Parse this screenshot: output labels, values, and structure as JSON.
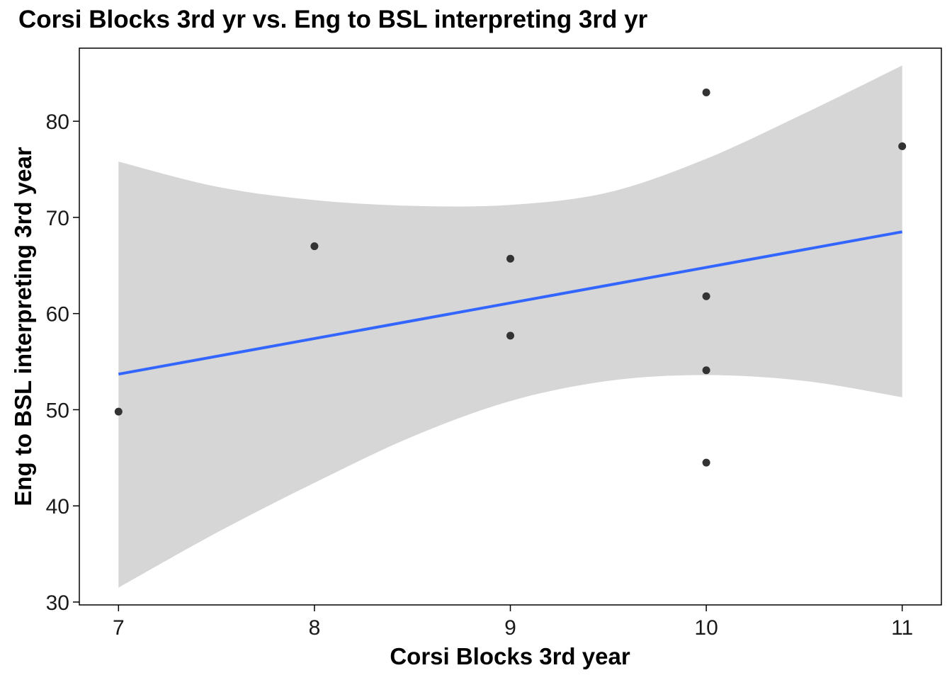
{
  "chart_data": {
    "type": "scatter",
    "title": "Corsi Blocks 3rd yr vs. Eng to BSL interpreting 3rd yr",
    "xlabel": "Corsi Blocks 3rd year",
    "ylabel": "Eng to BSL interpreting 3rd year",
    "xlim": [
      6.8,
      11.2
    ],
    "ylim": [
      29.7,
      87.6
    ],
    "xticks": [
      7,
      8,
      9,
      10,
      11
    ],
    "yticks": [
      30,
      40,
      50,
      60,
      70,
      80
    ],
    "grid": false,
    "points": [
      {
        "x": 7,
        "y": 49.8
      },
      {
        "x": 8,
        "y": 67.0
      },
      {
        "x": 9,
        "y": 65.7
      },
      {
        "x": 9,
        "y": 57.7
      },
      {
        "x": 10,
        "y": 83.0
      },
      {
        "x": 10,
        "y": 61.8
      },
      {
        "x": 10,
        "y": 54.1
      },
      {
        "x": 10,
        "y": 44.5
      },
      {
        "x": 11,
        "y": 77.4
      }
    ],
    "fit_line": {
      "x": [
        7,
        11
      ],
      "y": [
        53.7,
        68.5
      ]
    },
    "confidence_band": {
      "x": [
        7.0,
        7.5,
        8.0,
        8.5,
        9.0,
        9.5,
        10.0,
        10.5,
        11.0
      ],
      "upper": [
        75.8,
        73.2,
        71.8,
        71.2,
        71.3,
        72.6,
        76.1,
        80.8,
        85.8
      ],
      "lower": [
        31.5,
        37.2,
        42.4,
        47.2,
        50.9,
        53.0,
        53.6,
        53.0,
        51.3
      ]
    },
    "colors": {
      "points": "#333333",
      "line": "#3366FF",
      "band": "#D6D6D6",
      "panel_border": "#000000"
    }
  }
}
